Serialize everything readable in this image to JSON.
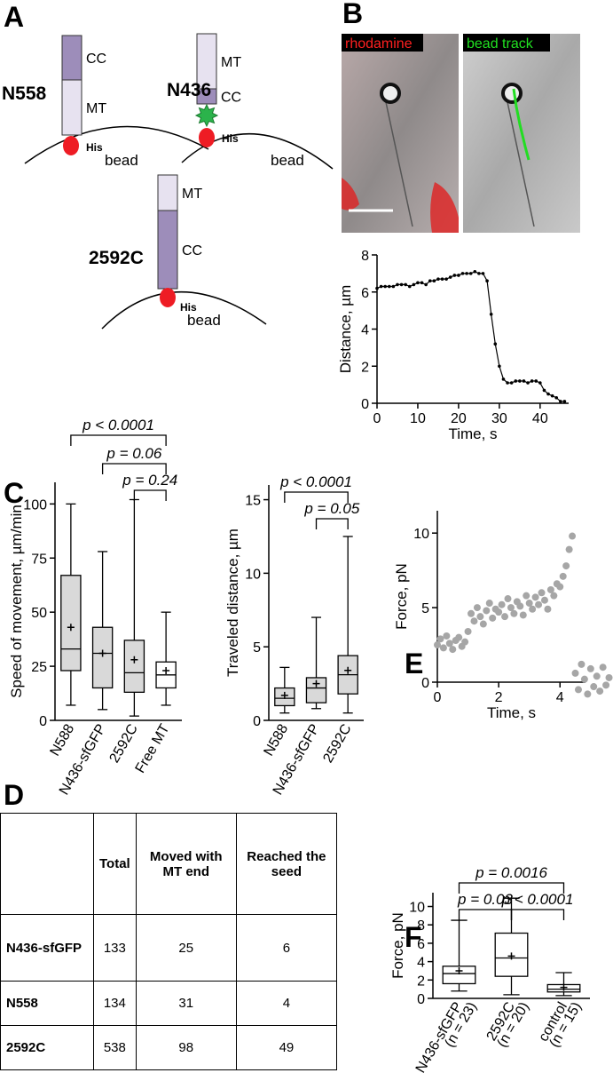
{
  "panel_labels": [
    "A",
    "B",
    "C",
    "D",
    "E",
    "F"
  ],
  "diagram": {
    "constructs": [
      {
        "name": "N558",
        "segments": [
          "CC",
          "MT"
        ],
        "tag": "His",
        "surface": "bead"
      },
      {
        "name": "N436",
        "segments": [
          "MT",
          "CC"
        ],
        "tag": "His",
        "surface": "bead"
      },
      {
        "name": "2592C",
        "segments": [
          "MT",
          "CC"
        ],
        "tag": "His",
        "surface": "bead"
      }
    ]
  },
  "micrographs": [
    {
      "label": "rhodamine"
    },
    {
      "label": "bead track"
    }
  ],
  "chart_data": [
    {
      "type": "line",
      "xlabel": "Time, s",
      "ylabel": "Distance, µm",
      "color": "#000000",
      "x": [
        0,
        1,
        2,
        3,
        4,
        5,
        6,
        7,
        8,
        9,
        10,
        11,
        12,
        13,
        14,
        15,
        16,
        17,
        18,
        19,
        20,
        21,
        22,
        23,
        24,
        25,
        26,
        27,
        28,
        29,
        30,
        31,
        32,
        33,
        34,
        35,
        36,
        37,
        38,
        39,
        40,
        41,
        42,
        43,
        44,
        45,
        46
      ],
      "values": [
        6.2,
        6.3,
        6.3,
        6.3,
        6.3,
        6.4,
        6.4,
        6.4,
        6.3,
        6.4,
        6.5,
        6.5,
        6.4,
        6.6,
        6.6,
        6.7,
        6.7,
        6.7,
        6.8,
        6.9,
        6.9,
        7,
        7,
        7,
        7.1,
        7,
        7,
        6.6,
        4.8,
        3.2,
        2,
        1.3,
        1.1,
        1.1,
        1.2,
        1.2,
        1.2,
        1.1,
        1.2,
        1.2,
        1.1,
        0.7,
        0.5,
        0.4,
        0.3,
        0.1,
        0.1
      ],
      "xlim": [
        0,
        47
      ],
      "ylim": [
        0,
        8
      ],
      "xticks": [
        0,
        10,
        20,
        30,
        40
      ],
      "yticks": [
        0,
        2,
        4,
        6,
        8
      ]
    },
    {
      "type": "box",
      "ylabel": "Speed of movement, µm/min",
      "categories": [
        "N588",
        "N436-sfGFP",
        "2592C",
        "Free MT"
      ],
      "min": [
        7,
        5,
        2,
        7
      ],
      "q1": [
        23,
        15,
        13,
        15
      ],
      "median": [
        33,
        31,
        22,
        21
      ],
      "q3": [
        67,
        43,
        37,
        27
      ],
      "max": [
        100,
        78,
        102,
        50
      ],
      "mean": [
        43,
        31,
        28,
        23
      ],
      "box_colors": [
        "#d9d9d9",
        "#d9d9d9",
        "#d9d9d9",
        "#ffffff"
      ],
      "ylim": [
        0,
        110
      ],
      "yticks": [
        0,
        25,
        50,
        75,
        100
      ],
      "comparisons": [
        {
          "label": "p < 0.0001",
          "between": [
            "N588",
            "Free MT"
          ]
        },
        {
          "label": "p = 0.06",
          "between": [
            "N436-sfGFP",
            "Free MT"
          ]
        },
        {
          "label": "p = 0.24",
          "between": [
            "2592C",
            "Free MT"
          ]
        }
      ]
    },
    {
      "type": "box",
      "ylabel": "Traveled distance, µm",
      "categories": [
        "N588",
        "N436-sfGFP",
        "2592C"
      ],
      "min": [
        0.5,
        0.8,
        0.5
      ],
      "q1": [
        1,
        1.2,
        1.8
      ],
      "median": [
        1.5,
        2.2,
        3.1
      ],
      "q3": [
        2.2,
        2.9,
        4.4
      ],
      "max": [
        3.6,
        7,
        12.5
      ],
      "mean": [
        1.7,
        2.5,
        3.4
      ],
      "box_colors": [
        "#d9d9d9",
        "#d9d9d9",
        "#d9d9d9"
      ],
      "ylim": [
        0,
        16
      ],
      "yticks": [
        0,
        5,
        10,
        15
      ],
      "comparisons": [
        {
          "label": "p < 0.0001",
          "between": [
            "N588",
            "2592C"
          ]
        },
        {
          "label": "p = 0.05",
          "between": [
            "N436-sfGFP",
            "2592C"
          ]
        }
      ]
    },
    {
      "type": "scatter",
      "xlabel": "Time, s",
      "ylabel": "Force, pN",
      "color": "#a6a6a6",
      "x": [
        0,
        0.1,
        0.2,
        0.3,
        0.4,
        0.5,
        0.6,
        0.7,
        0.8,
        0.9,
        1,
        1.1,
        1.2,
        1.3,
        1.4,
        1.5,
        1.6,
        1.7,
        1.8,
        1.9,
        2,
        2.1,
        2.2,
        2.3,
        2.4,
        2.5,
        2.6,
        2.7,
        2.8,
        2.9,
        3,
        3.1,
        3.2,
        3.3,
        3.4,
        3.5,
        3.6,
        3.7,
        3.8,
        3.9,
        4,
        4.1,
        4.2,
        4.3,
        4.4,
        4.5,
        4.6,
        4.7,
        4.8,
        4.9,
        5,
        5.1,
        5.2,
        5.3,
        5.4,
        5.5,
        5.6
      ],
      "values": [
        2.5,
        2.9,
        2.3,
        3.1,
        2.6,
        2.2,
        2.8,
        3,
        2.4,
        2.7,
        3.4,
        4.6,
        4.1,
        5,
        4.4,
        3.9,
        4.8,
        5.3,
        4.3,
        4.9,
        4.7,
        5.2,
        4.4,
        5.6,
        5,
        4.6,
        5.4,
        5.1,
        4.5,
        5.8,
        5.3,
        4.9,
        5.7,
        5.2,
        6,
        5.5,
        4.9,
        6.2,
        5.8,
        6.6,
        6.4,
        7.1,
        7.8,
        8.9,
        9.8,
        0.6,
        -0.5,
        1.2,
        0.2,
        -0.8,
        0.9,
        -0.3,
        0.4,
        -0.6,
        1,
        -0.2,
        0.3
      ],
      "xlim": [
        0,
        5.7
      ],
      "ylim": [
        0,
        11.5
      ],
      "xticks": [
        0,
        2,
        4
      ],
      "yticks": [
        0,
        5,
        10
      ]
    },
    {
      "type": "box",
      "ylabel": "Force, pN",
      "categories": [
        "N436-sfGFP",
        "2592C",
        "control"
      ],
      "category_notes": [
        "(n = 23)",
        "(n = 20)",
        "(n = 15)"
      ],
      "min": [
        0.8,
        0.4,
        0.3
      ],
      "q1": [
        1.6,
        2.4,
        0.7
      ],
      "median": [
        2.7,
        4.4,
        1
      ],
      "q3": [
        3.5,
        7.1,
        1.5
      ],
      "max": [
        8.5,
        10.9,
        2.8
      ],
      "mean": [
        3,
        4.6,
        1.2
      ],
      "box_colors": [
        "#ffffff",
        "#ffffff",
        "#ffffff"
      ],
      "ylim": [
        0,
        11.5
      ],
      "yticks": [
        0,
        2,
        4,
        6,
        8,
        10
      ],
      "comparisons": [
        {
          "label": "p = 0.0016",
          "between": [
            "N436-sfGFP",
            "control"
          ]
        },
        {
          "label": "p = 0.03",
          "between": [
            "N436-sfGFP",
            "2592C"
          ]
        },
        {
          "label": "p < 0.0001",
          "between": [
            "2592C",
            "control"
          ]
        }
      ]
    }
  ],
  "table": {
    "header": [
      "Total",
      "Moved with MT end",
      "Reached the seed"
    ],
    "rows": [
      [
        "N436-sfGFP",
        133,
        25,
        6
      ],
      [
        "N558",
        134,
        31,
        4
      ],
      [
        "2592C",
        538,
        98,
        49
      ]
    ]
  }
}
